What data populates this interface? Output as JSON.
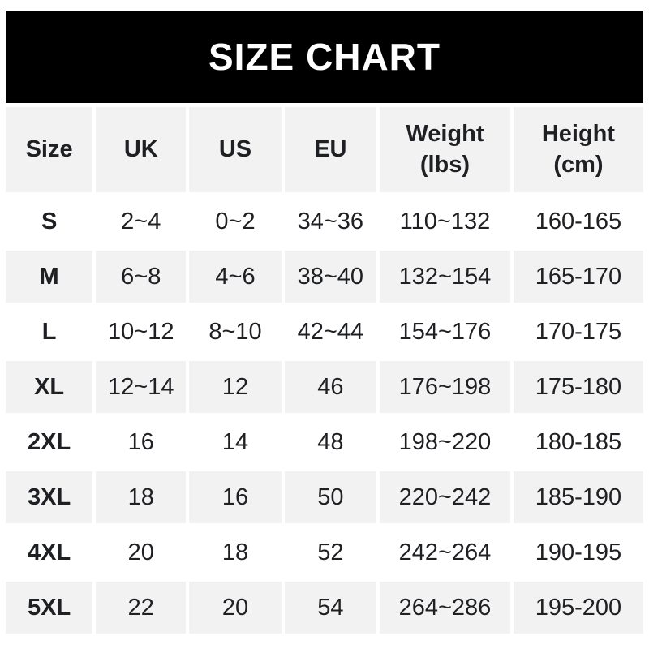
{
  "chart_data": {
    "type": "table",
    "title": "SIZE CHART",
    "columns": [
      {
        "label": "Size"
      },
      {
        "label": "UK"
      },
      {
        "label": "US"
      },
      {
        "label": "EU"
      },
      {
        "label": "Weight\n(lbs)"
      },
      {
        "label": "Height\n(cm)"
      }
    ],
    "rows": [
      {
        "size": "S",
        "uk": "2~4",
        "us": "0~2",
        "eu": "34~36",
        "weight": "110~132",
        "height": "160-165"
      },
      {
        "size": "M",
        "uk": "6~8",
        "us": "4~6",
        "eu": "38~40",
        "weight": "132~154",
        "height": "165-170"
      },
      {
        "size": "L",
        "uk": "10~12",
        "us": "8~10",
        "eu": "42~44",
        "weight": "154~176",
        "height": "170-175"
      },
      {
        "size": "XL",
        "uk": "12~14",
        "us": "12",
        "eu": "46",
        "weight": "176~198",
        "height": "175-180"
      },
      {
        "size": "2XL",
        "uk": "16",
        "us": "14",
        "eu": "48",
        "weight": "198~220",
        "height": "180-185"
      },
      {
        "size": "3XL",
        "uk": "18",
        "us": "16",
        "eu": "50",
        "weight": "220~242",
        "height": "185-190"
      },
      {
        "size": "4XL",
        "uk": "20",
        "us": "18",
        "eu": "52",
        "weight": "242~264",
        "height": "190-195"
      },
      {
        "size": "5XL",
        "uk": "22",
        "us": "20",
        "eu": "54",
        "weight": "264~286",
        "height": "195-200"
      }
    ],
    "layout": {
      "legend": "none",
      "grid": "white-gap-separators",
      "striped_rows": [
        "header",
        "M",
        "XL",
        "3XL",
        "5XL"
      ]
    },
    "colors": {
      "title_bar_bg": "#000000",
      "title_text": "#ffffff",
      "stripe_bg": "#f2f2f2",
      "row_bg": "#ffffff",
      "text": "#1f2023",
      "page_bg": "#ffffff"
    }
  }
}
